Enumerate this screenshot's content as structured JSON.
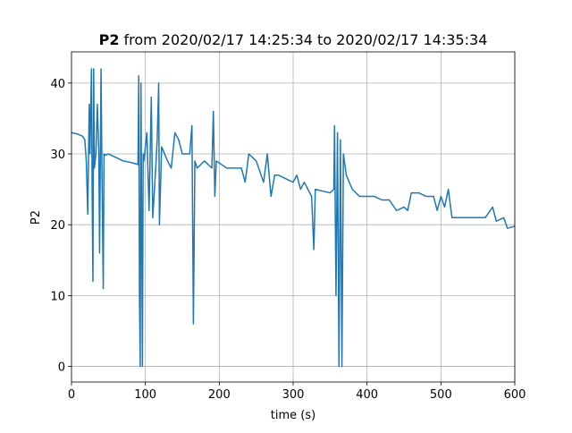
{
  "chart_data": {
    "type": "line",
    "title_bold": "P2",
    "title": "from 2020/02/17 14:25:34 to 2020/02/17 14:35:34",
    "xlabel": "time (s)",
    "ylabel": "P2",
    "xlim": [
      0,
      600
    ],
    "xticks": [
      0,
      100,
      200,
      300,
      400,
      500,
      600
    ],
    "ylim": [
      -2.2,
      44.4
    ],
    "yticks": [
      0,
      10,
      20,
      30,
      40
    ],
    "grid": true,
    "series": [
      {
        "name": "P2",
        "color": "#1f77b4",
        "x": [
          0,
          8,
          15,
          18,
          20,
          22,
          24,
          25,
          27,
          28,
          29,
          30,
          31,
          33,
          35,
          37,
          38,
          40,
          41,
          43,
          44,
          46,
          50,
          60,
          70,
          80,
          90,
          91,
          92,
          93,
          94,
          95,
          96,
          97,
          98,
          99,
          102,
          105,
          108,
          110,
          114,
          116,
          118,
          119,
          122,
          130,
          135,
          140,
          145,
          150,
          160,
          163,
          165,
          167,
          170,
          180,
          190,
          192,
          194,
          196,
          210,
          230,
          235,
          240,
          250,
          260,
          265,
          270,
          275,
          280,
          300,
          305,
          310,
          315,
          320,
          325,
          328,
          330,
          350,
          355,
          356,
          358,
          360,
          362,
          364,
          366,
          368,
          372,
          380,
          390,
          400,
          410,
          420,
          430,
          440,
          450,
          455,
          460,
          470,
          480,
          490,
          495,
          500,
          505,
          510,
          515,
          520,
          540,
          560,
          570,
          575,
          585,
          590,
          600
        ],
        "values": [
          33,
          32.8,
          32.5,
          32,
          29,
          21.5,
          37,
          30,
          42,
          24,
          12,
          42,
          28,
          30,
          37,
          30,
          16,
          42,
          30,
          11,
          30,
          29.8,
          30,
          29.5,
          29,
          28.8,
          28.5,
          41,
          10,
          0,
          40,
          20,
          0,
          30,
          29,
          30,
          33,
          22,
          38,
          21,
          28,
          32,
          40,
          20,
          31,
          29,
          28,
          33,
          32,
          30,
          30,
          34,
          6,
          29,
          28,
          29,
          28,
          36,
          24,
          29,
          28,
          28,
          26,
          30,
          29,
          26,
          30,
          24,
          27,
          27,
          26,
          27,
          25,
          26,
          25,
          24,
          16.5,
          25,
          24.5,
          25,
          34,
          10,
          33,
          0,
          32,
          0,
          30,
          27,
          25,
          24,
          24,
          24,
          23.5,
          23.5,
          22,
          22.5,
          22,
          24.5,
          24.5,
          24,
          24,
          22,
          24,
          22.5,
          25,
          21,
          21,
          21,
          21,
          22.5,
          20.5,
          21,
          19.5,
          19.8
        ]
      }
    ]
  }
}
